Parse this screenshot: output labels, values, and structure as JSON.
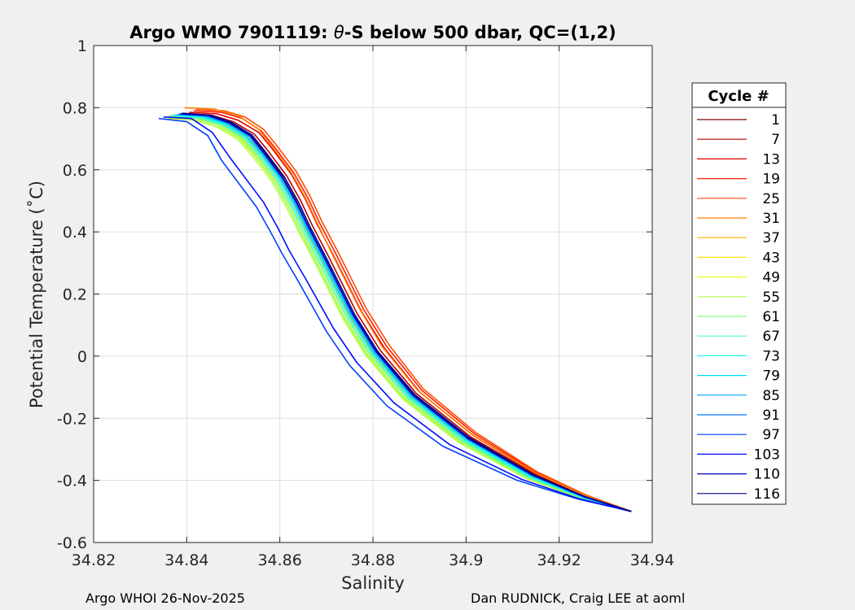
{
  "chart_data": {
    "type": "line",
    "title_prefix": "Argo WMO 7901119: ",
    "title_theta": "θ",
    "title_suffix": "-S below 500 dbar,  QC=(1,2)",
    "xlabel": "Salinity",
    "ylabel": "Potential Temperature (˚C)",
    "xlim": [
      34.82,
      34.94
    ],
    "ylim": [
      -0.6,
      1
    ],
    "xticks": [
      34.82,
      34.84,
      34.86,
      34.88,
      34.9,
      34.92,
      34.94
    ],
    "xtick_labels": [
      "34.82",
      "34.84",
      "34.86",
      "34.88",
      "34.9",
      "34.92",
      "34.94"
    ],
    "yticks": [
      -0.6,
      -0.4,
      -0.2,
      0,
      0.2,
      0.4,
      0.6,
      0.8,
      1
    ],
    "ytick_labels": [
      "-0.6",
      "-0.4",
      "-0.2",
      "0",
      "0.2",
      "0.4",
      "0.6",
      "0.8",
      "1"
    ],
    "grid": true,
    "legend": {
      "title": "Cycle #",
      "placement": "right-outside",
      "entries": [
        {
          "label": "1",
          "color": "#800000"
        },
        {
          "label": "7",
          "color": "#b30000"
        },
        {
          "label": "13",
          "color": "#e60000"
        },
        {
          "label": "19",
          "color": "#ff1a00"
        },
        {
          "label": "25",
          "color": "#ff4d00"
        },
        {
          "label": "31",
          "color": "#ff8000"
        },
        {
          "label": "37",
          "color": "#ffb300"
        },
        {
          "label": "43",
          "color": "#ffe600"
        },
        {
          "label": "49",
          "color": "#e6ff1a"
        },
        {
          "label": "55",
          "color": "#b3ff4d"
        },
        {
          "label": "61",
          "color": "#80ff80"
        },
        {
          "label": "67",
          "color": "#4dffb3"
        },
        {
          "label": "73",
          "color": "#1affe6"
        },
        {
          "label": "79",
          "color": "#00d9ff"
        },
        {
          "label": "85",
          "color": "#00a6ff"
        },
        {
          "label": "91",
          "color": "#0073ff"
        },
        {
          "label": "97",
          "color": "#0040ff"
        },
        {
          "label": "103",
          "color": "#000dff"
        },
        {
          "label": "110",
          "color": "#0000c4"
        },
        {
          "label": "116",
          "color": "#00008f"
        }
      ]
    },
    "series": [
      {
        "label": "1",
        "color": "#800000",
        "x": [
          34.8385,
          34.8445,
          34.849,
          34.8535,
          34.8565,
          34.8605,
          34.8635,
          34.866,
          34.8695,
          34.8725,
          34.8755,
          34.8805,
          34.8885,
          34.9005,
          34.9145,
          34.9255,
          34.9355
        ],
        "y": [
          0.78,
          0.775,
          0.755,
          0.715,
          0.66,
          0.58,
          0.5,
          0.42,
          0.32,
          0.23,
          0.14,
          0.02,
          -0.12,
          -0.26,
          -0.38,
          -0.45,
          -0.5
        ]
      },
      {
        "label": "7",
        "color": "#b30000",
        "x": [
          34.8395,
          34.8455,
          34.85,
          34.8545,
          34.8575,
          34.8615,
          34.8645,
          34.867,
          34.8705,
          34.8735,
          34.8765,
          34.8815,
          34.8893,
          34.901,
          34.9148,
          34.9256,
          34.9355
        ],
        "y": [
          0.78,
          0.775,
          0.755,
          0.715,
          0.66,
          0.58,
          0.5,
          0.42,
          0.32,
          0.23,
          0.14,
          0.02,
          -0.12,
          -0.26,
          -0.38,
          -0.45,
          -0.5
        ]
      },
      {
        "label": "13",
        "color": "#e60000",
        "x": [
          34.8405,
          34.8465,
          34.851,
          34.8555,
          34.8585,
          34.8625,
          34.8655,
          34.868,
          34.8715,
          34.8745,
          34.8775,
          34.8825,
          34.89,
          34.9015,
          34.915,
          34.9257,
          34.9355
        ],
        "y": [
          0.785,
          0.78,
          0.76,
          0.72,
          0.665,
          0.585,
          0.505,
          0.425,
          0.325,
          0.235,
          0.145,
          0.025,
          -0.115,
          -0.255,
          -0.378,
          -0.45,
          -0.5
        ]
      },
      {
        "label": "19",
        "color": "#ff1a00",
        "x": [
          34.8415,
          34.8475,
          34.852,
          34.856,
          34.859,
          34.863,
          34.866,
          34.8685,
          34.872,
          34.875,
          34.878,
          34.883,
          34.8905,
          34.9018,
          34.9151,
          34.9257,
          34.9355
        ],
        "y": [
          0.79,
          0.785,
          0.765,
          0.725,
          0.67,
          0.59,
          0.51,
          0.43,
          0.33,
          0.24,
          0.15,
          0.03,
          -0.11,
          -0.25,
          -0.375,
          -0.448,
          -0.5
        ]
      },
      {
        "label": "25",
        "color": "#ff4d00",
        "x": [
          34.842,
          34.848,
          34.8525,
          34.8565,
          34.8595,
          34.8635,
          34.8665,
          34.869,
          34.8725,
          34.8755,
          34.8785,
          34.8835,
          34.8908,
          34.902,
          34.9152,
          34.9258,
          34.9355
        ],
        "y": [
          0.795,
          0.79,
          0.77,
          0.73,
          0.675,
          0.595,
          0.515,
          0.435,
          0.335,
          0.245,
          0.155,
          0.035,
          -0.105,
          -0.245,
          -0.372,
          -0.447,
          -0.5
        ]
      },
      {
        "label": "31",
        "color": "#ff8000",
        "x": [
          34.8395,
          34.846,
          34.851,
          34.8555,
          34.8585,
          34.8625,
          34.8655,
          34.868,
          34.8712,
          34.8742,
          34.8772,
          34.882,
          34.8896,
          34.9012,
          34.9149,
          34.9256,
          34.9355
        ],
        "y": [
          0.8,
          0.795,
          0.775,
          0.73,
          0.672,
          0.59,
          0.51,
          0.43,
          0.33,
          0.24,
          0.15,
          0.03,
          -0.11,
          -0.252,
          -0.376,
          -0.449,
          -0.5
        ]
      },
      {
        "label": "37",
        "color": "#ffb300",
        "x": [
          34.8375,
          34.8435,
          34.8482,
          34.8528,
          34.856,
          34.86,
          34.863,
          34.8655,
          34.869,
          34.872,
          34.875,
          34.88,
          34.888,
          34.9,
          34.914,
          34.9252,
          34.9355
        ],
        "y": [
          0.775,
          0.77,
          0.748,
          0.705,
          0.65,
          0.57,
          0.49,
          0.41,
          0.31,
          0.22,
          0.13,
          0.01,
          -0.13,
          -0.27,
          -0.388,
          -0.455,
          -0.5
        ]
      },
      {
        "label": "43",
        "color": "#ffe600",
        "x": [
          34.8365,
          34.8425,
          34.8472,
          34.852,
          34.8552,
          34.8592,
          34.8622,
          34.8648,
          34.8683,
          34.8713,
          34.8743,
          34.8793,
          34.8873,
          34.8993,
          34.9135,
          34.925,
          34.9355
        ],
        "y": [
          0.77,
          0.765,
          0.742,
          0.7,
          0.645,
          0.565,
          0.485,
          0.405,
          0.305,
          0.215,
          0.125,
          0.005,
          -0.135,
          -0.275,
          -0.392,
          -0.457,
          -0.5
        ]
      },
      {
        "label": "49",
        "color": "#e6ff1a",
        "x": [
          34.836,
          34.842,
          34.8468,
          34.8515,
          34.8548,
          34.8588,
          34.8618,
          34.8644,
          34.8679,
          34.8709,
          34.8739,
          34.8789,
          34.8868,
          34.8988,
          34.9132,
          34.9248,
          34.9355
        ],
        "y": [
          0.765,
          0.76,
          0.738,
          0.696,
          0.64,
          0.56,
          0.48,
          0.4,
          0.3,
          0.21,
          0.12,
          0.0,
          -0.14,
          -0.28,
          -0.395,
          -0.459,
          -0.5
        ]
      },
      {
        "label": "55",
        "color": "#b3ff4d",
        "x": [
          34.8355,
          34.8415,
          34.8462,
          34.851,
          34.8542,
          34.8583,
          34.8613,
          34.864,
          34.8675,
          34.8705,
          34.8735,
          34.8785,
          34.8864,
          34.8984,
          34.913,
          34.9247,
          34.9355
        ],
        "y": [
          0.77,
          0.76,
          0.74,
          0.698,
          0.642,
          0.562,
          0.482,
          0.402,
          0.302,
          0.212,
          0.122,
          0.002,
          -0.138,
          -0.278,
          -0.394,
          -0.458,
          -0.5
        ]
      },
      {
        "label": "61",
        "color": "#80ff80",
        "x": [
          34.836,
          34.842,
          34.8468,
          34.8515,
          34.8547,
          34.8587,
          34.8617,
          34.8643,
          34.8678,
          34.8708,
          34.8738,
          34.8788,
          34.8867,
          34.8987,
          34.9132,
          34.9248,
          34.9355
        ],
        "y": [
          0.772,
          0.765,
          0.744,
          0.702,
          0.646,
          0.566,
          0.486,
          0.406,
          0.306,
          0.216,
          0.126,
          0.006,
          -0.134,
          -0.274,
          -0.391,
          -0.457,
          -0.5
        ]
      },
      {
        "label": "67",
        "color": "#4dffb3",
        "x": [
          34.8365,
          34.8425,
          34.8473,
          34.852,
          34.8552,
          34.8592,
          34.8622,
          34.8648,
          34.8683,
          34.8713,
          34.8743,
          34.8793,
          34.8872,
          34.8992,
          34.9135,
          34.9249,
          34.9355
        ],
        "y": [
          0.775,
          0.768,
          0.747,
          0.705,
          0.649,
          0.569,
          0.489,
          0.409,
          0.309,
          0.219,
          0.129,
          0.009,
          -0.131,
          -0.272,
          -0.389,
          -0.456,
          -0.5
        ]
      },
      {
        "label": "73",
        "color": "#1affe6",
        "x": [
          34.837,
          34.843,
          34.8477,
          34.8524,
          34.8556,
          34.8596,
          34.8626,
          34.8652,
          34.8687,
          34.8717,
          34.8747,
          34.8797,
          34.8876,
          34.8996,
          34.9137,
          34.925,
          34.9355
        ],
        "y": [
          0.775,
          0.77,
          0.748,
          0.706,
          0.65,
          0.57,
          0.49,
          0.41,
          0.31,
          0.22,
          0.13,
          0.01,
          -0.13,
          -0.27,
          -0.387,
          -0.455,
          -0.5
        ]
      },
      {
        "label": "79",
        "color": "#00d9ff",
        "x": [
          34.8375,
          34.8435,
          34.8482,
          34.8528,
          34.856,
          34.86,
          34.863,
          34.8656,
          34.8691,
          34.8721,
          34.8751,
          34.8801,
          34.888,
          34.9,
          34.914,
          34.9252,
          34.9355
        ],
        "y": [
          0.777,
          0.772,
          0.75,
          0.708,
          0.652,
          0.572,
          0.492,
          0.412,
          0.312,
          0.222,
          0.132,
          0.012,
          -0.128,
          -0.268,
          -0.386,
          -0.454,
          -0.5
        ]
      },
      {
        "label": "85",
        "color": "#00a6ff",
        "x": [
          34.838,
          34.844,
          34.8486,
          34.8532,
          34.8563,
          34.8603,
          34.8633,
          34.8659,
          34.8694,
          34.8724,
          34.8754,
          34.8804,
          34.8883,
          34.9003,
          34.9142,
          34.9253,
          34.9355
        ],
        "y": [
          0.778,
          0.773,
          0.751,
          0.709,
          0.653,
          0.573,
          0.493,
          0.413,
          0.313,
          0.223,
          0.133,
          0.013,
          -0.127,
          -0.267,
          -0.385,
          -0.454,
          -0.5
        ]
      },
      {
        "label": "91",
        "color": "#0073ff",
        "x": [
          34.8385,
          34.8445,
          34.849,
          34.8536,
          34.8566,
          34.8606,
          34.8636,
          34.8662,
          34.8697,
          34.8727,
          34.8757,
          34.8807,
          34.8886,
          34.9005,
          34.9144,
          34.9254,
          34.9355
        ],
        "y": [
          0.779,
          0.774,
          0.752,
          0.71,
          0.654,
          0.574,
          0.494,
          0.414,
          0.314,
          0.224,
          0.134,
          0.014,
          -0.126,
          -0.266,
          -0.384,
          -0.453,
          -0.5
        ]
      },
      {
        "label": "97",
        "color": "#0040ff",
        "x": [
          34.834,
          34.84,
          34.8445,
          34.8475,
          34.851,
          34.855,
          34.858,
          34.8605,
          34.864,
          34.867,
          34.87,
          34.875,
          34.883,
          34.895,
          34.911,
          34.924,
          34.9355
        ],
        "y": [
          0.765,
          0.755,
          0.71,
          0.63,
          0.56,
          0.48,
          0.4,
          0.33,
          0.24,
          0.16,
          0.08,
          -0.03,
          -0.16,
          -0.29,
          -0.4,
          -0.46,
          -0.5
        ]
      },
      {
        "label": "103",
        "color": "#000dff",
        "x": [
          34.835,
          34.841,
          34.8455,
          34.849,
          34.8525,
          34.8565,
          34.8595,
          34.862,
          34.8655,
          34.8685,
          34.8715,
          34.8765,
          34.8845,
          34.8965,
          34.912,
          34.9243,
          34.9355
        ],
        "y": [
          0.77,
          0.765,
          0.72,
          0.645,
          0.575,
          0.495,
          0.415,
          0.34,
          0.25,
          0.17,
          0.09,
          -0.02,
          -0.15,
          -0.285,
          -0.397,
          -0.459,
          -0.5
        ]
      },
      {
        "label": "110",
        "color": "#0000c4",
        "x": [
          34.8385,
          34.8445,
          34.849,
          34.8536,
          34.8566,
          34.8606,
          34.8636,
          34.8662,
          34.8697,
          34.8727,
          34.8757,
          34.8807,
          34.8886,
          34.9005,
          34.9144,
          34.9254,
          34.9355
        ],
        "y": [
          0.78,
          0.775,
          0.752,
          0.71,
          0.654,
          0.574,
          0.494,
          0.414,
          0.314,
          0.224,
          0.134,
          0.014,
          -0.126,
          -0.266,
          -0.384,
          -0.453,
          -0.5
        ]
      },
      {
        "label": "116",
        "color": "#00008f",
        "x": [
          34.839,
          34.845,
          34.8495,
          34.854,
          34.857,
          34.861,
          34.864,
          34.8665,
          34.87,
          34.873,
          34.876,
          34.881,
          34.889,
          34.9008,
          34.9146,
          34.9255,
          34.9355
        ],
        "y": [
          0.782,
          0.776,
          0.754,
          0.712,
          0.656,
          0.576,
          0.496,
          0.416,
          0.316,
          0.226,
          0.136,
          0.016,
          -0.124,
          -0.264,
          -0.383,
          -0.452,
          -0.5
        ]
      }
    ]
  },
  "footer": {
    "left": "Argo WHOI 26-Nov-2025",
    "right": "Dan RUDNICK, Craig LEE at aoml"
  }
}
